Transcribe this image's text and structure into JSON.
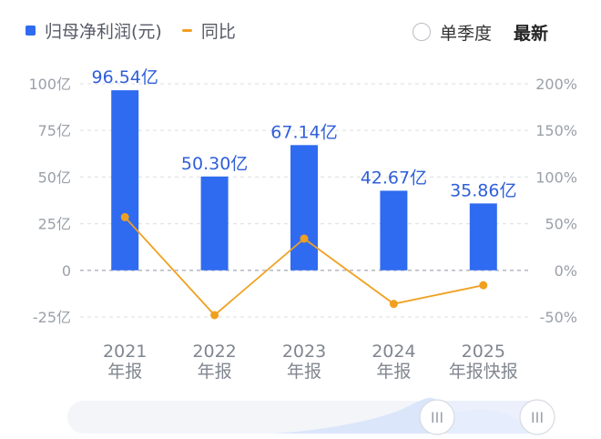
{
  "legend": {
    "bar_label": "归母净利润(元)",
    "line_label": "同比"
  },
  "controls": {
    "single_quarter": "单季度",
    "latest": "最新"
  },
  "colors": {
    "bar": "#2f6bf0",
    "line": "#f0a020",
    "bar_label": "#2f5fd8"
  },
  "chart_data": {
    "type": "bar",
    "categories": [
      [
        "2021",
        "年报"
      ],
      [
        "2022",
        "年报"
      ],
      [
        "2023",
        "年报"
      ],
      [
        "2024",
        "年报"
      ],
      [
        "2025",
        "年报快报"
      ]
    ],
    "series": [
      {
        "name": "归母净利润(元)",
        "type": "bar",
        "axis": "left",
        "values": [
          96.54,
          50.3,
          67.14,
          42.67,
          35.86
        ],
        "labels": [
          "96.54亿",
          "50.30亿",
          "67.14亿",
          "42.67亿",
          "35.86亿"
        ]
      },
      {
        "name": "同比",
        "type": "line",
        "axis": "right",
        "values": [
          57,
          -48,
          34,
          -36,
          -16
        ]
      }
    ],
    "y_left": {
      "ticks": [
        100,
        75,
        50,
        25,
        0,
        -25
      ],
      "tick_labels": [
        "100亿",
        "75亿",
        "50亿",
        "25亿",
        "0",
        "-25亿"
      ],
      "range": [
        -25,
        100
      ]
    },
    "y_right": {
      "ticks": [
        200,
        150,
        100,
        50,
        0,
        -50
      ],
      "tick_labels": [
        "200%",
        "150%",
        "100%",
        "50%",
        "0%",
        "-50%"
      ],
      "range": [
        -50,
        200
      ]
    },
    "grid": true,
    "legend": "top-left"
  },
  "scrollbar": {
    "handle_glyph": "III"
  }
}
